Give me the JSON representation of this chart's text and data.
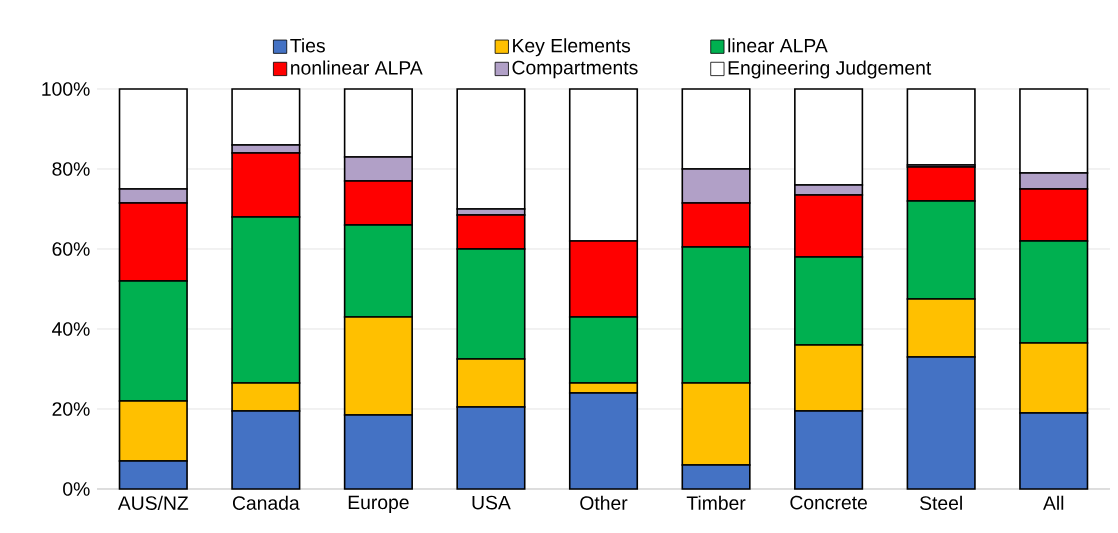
{
  "chart_data": {
    "type": "bar",
    "stacked": true,
    "categories": [
      "AUS/NZ",
      "Canada",
      "Europe",
      "USA",
      "Other",
      "Timber",
      "Concrete",
      "Steel",
      "All"
    ],
    "series": [
      {
        "name": "Ties",
        "color": "#4472c4",
        "values": [
          7,
          19.5,
          18.5,
          20.5,
          24,
          6,
          19.5,
          33,
          19
        ]
      },
      {
        "name": "Key Elements",
        "color": "#ffc000",
        "values": [
          15,
          7,
          24.5,
          12,
          2.5,
          20.5,
          16.5,
          14.5,
          17.5
        ]
      },
      {
        "name": "linear ALPA",
        "color": "#00b050",
        "values": [
          30,
          41.5,
          23,
          27.5,
          16.5,
          34,
          22,
          24.5,
          25.5
        ]
      },
      {
        "name": "nonlinear ALPA",
        "color": "#ff0000",
        "values": [
          19.5,
          16,
          11,
          8.5,
          19,
          11,
          15.5,
          8.5,
          13
        ]
      },
      {
        "name": "Compartments",
        "color": "#b1a0c7",
        "values": [
          3.5,
          2,
          6,
          1.5,
          0,
          8.5,
          2.5,
          0.5,
          4
        ]
      },
      {
        "name": "Engineering Judgement",
        "color": "#ffffff",
        "values": [
          25,
          14,
          17,
          30,
          38,
          20,
          24,
          19,
          21
        ]
      }
    ],
    "ylim": [
      0,
      100
    ],
    "yticks": [
      {
        "value": 0,
        "label": "0%"
      },
      {
        "value": 20,
        "label": "20%"
      },
      {
        "value": 40,
        "label": "40%"
      },
      {
        "value": 60,
        "label": "60%"
      },
      {
        "value": 80,
        "label": "80%"
      },
      {
        "value": 100,
        "label": "100%"
      }
    ],
    "grid": "y",
    "legend": "top"
  }
}
